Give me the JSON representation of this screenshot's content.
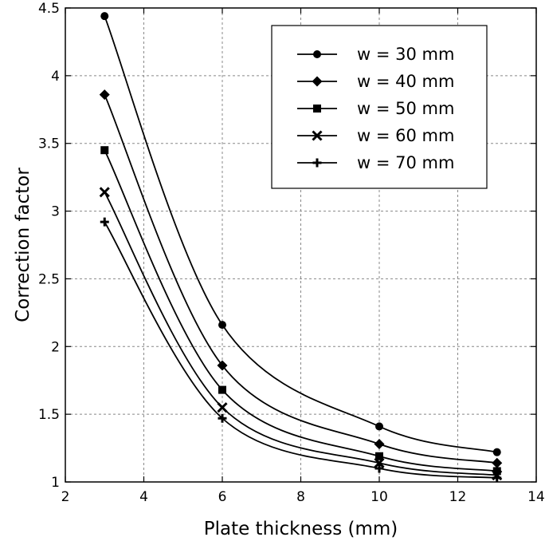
{
  "chart_data": {
    "type": "line",
    "xlabel": "Plate thickness (mm)",
    "ylabel": "Correction factor",
    "xlim": [
      2,
      14
    ],
    "ylim": [
      1,
      4.5
    ],
    "xticks": [
      2,
      4,
      6,
      8,
      10,
      12,
      14
    ],
    "xtick_labels": [
      "2",
      "4",
      "6",
      "8",
      "10",
      "12",
      "14"
    ],
    "yticks": [
      1,
      1.5,
      2,
      2.5,
      3,
      3.5,
      4,
      4.5
    ],
    "ytick_labels": [
      "1",
      "1.5",
      "2",
      "2.5",
      "3",
      "3.5",
      "4",
      "4.5"
    ],
    "grid": true,
    "legend_position": "top-right",
    "x": [
      3,
      6,
      10,
      13
    ],
    "series": [
      {
        "name": "w = 30 mm",
        "marker": "circle",
        "values": [
          4.44,
          2.16,
          1.41,
          1.22
        ]
      },
      {
        "name": "w = 40 mm",
        "marker": "diamond",
        "values": [
          3.86,
          1.86,
          1.28,
          1.14
        ]
      },
      {
        "name": "w = 50 mm",
        "marker": "square",
        "values": [
          3.45,
          1.68,
          1.19,
          1.08
        ]
      },
      {
        "name": "w = 60 mm",
        "marker": "x",
        "values": [
          3.14,
          1.55,
          1.14,
          1.05
        ]
      },
      {
        "name": "w = 70 mm",
        "marker": "plus",
        "values": [
          2.92,
          1.47,
          1.1,
          1.03
        ]
      }
    ],
    "line_color": "#000000"
  }
}
